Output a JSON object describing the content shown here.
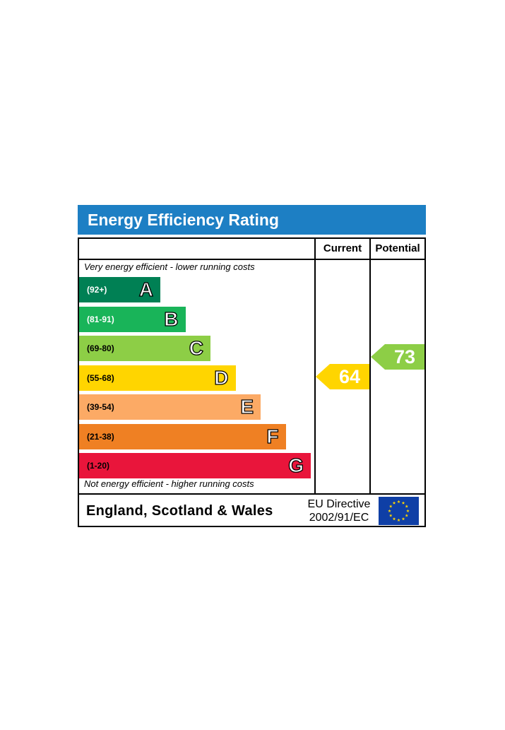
{
  "title": "Energy Efficiency Rating",
  "columns": {
    "current": "Current",
    "potential": "Potential"
  },
  "top_note": "Very energy efficient - lower running costs",
  "bottom_note": "Not energy efficient - higher running costs",
  "footer": {
    "country": "England, Scotland & Wales",
    "directive_line1": "EU Directive",
    "directive_line2": "2002/91/EC",
    "flag_icon": "eu-flag-icon"
  },
  "chart_data": {
    "type": "bar",
    "categories": [
      "A",
      "B",
      "C",
      "D",
      "E",
      "F",
      "G"
    ],
    "ranges": [
      "(92+)",
      "(81-91)",
      "(69-80)",
      "(55-68)",
      "(39-54)",
      "(21-38)",
      "(1-20)"
    ],
    "colors": [
      "#008054",
      "#19b459",
      "#8dce46",
      "#ffd500",
      "#fcaa65",
      "#ef8023",
      "#e9153b"
    ],
    "current": {
      "value": 64,
      "band": "D",
      "color": "#ffd500"
    },
    "potential": {
      "value": 73,
      "band": "C",
      "color": "#8dce46"
    }
  }
}
